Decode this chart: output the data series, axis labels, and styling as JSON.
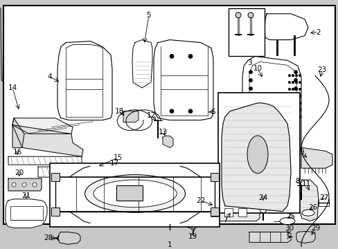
{
  "bg_outer": "#c8c8c8",
  "bg_inner": "#e8e8e8",
  "border_lw": 1.2,
  "fig_w": 4.89,
  "fig_h": 3.6,
  "dpi": 100
}
